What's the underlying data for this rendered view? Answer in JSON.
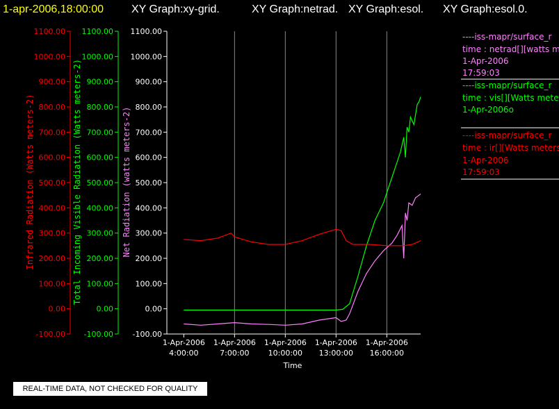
{
  "header": {
    "timestamp": "1-apr-2006,18:00:00",
    "graphs": [
      "XY Graph:xy-grid.",
      "XY Graph:netrad.",
      "XY Graph:esol.",
      "XY Graph:esol.0."
    ]
  },
  "notice": "REAL-TIME DATA, NOT CHECKED FOR QUALITY",
  "legend": [
    {
      "source": "----iss-mapr/surface_r",
      "var": "time : netrad[][watts me",
      "date": "1-Apr-2006",
      "time": "17:59:03"
    },
    {
      "source": "----iss-mapr/surface_r",
      "var": "time : vis[][Watts meter",
      "date": "1-Apr-2006o",
      "time": ""
    },
    {
      "source": "----iss-mapr/surface_r",
      "var": "time : ir[][Watts meters",
      "date": "1-Apr-2006",
      "time": "17:59:03"
    }
  ],
  "chart_data": {
    "type": "line",
    "xlabel": "Time",
    "x_ticks": [
      {
        "date": "1-Apr-2006",
        "time": "4:00:00",
        "hour": 4
      },
      {
        "date": "1-Apr-2006",
        "time": "7:00:00",
        "hour": 7
      },
      {
        "date": "1-Apr-2006",
        "time": "10:00:00",
        "hour": 10
      },
      {
        "date": "1-Apr-2006",
        "time": "13:00:00",
        "hour": 13
      },
      {
        "date": "1-Apr-2006",
        "time": "16:00:00",
        "hour": 16
      }
    ],
    "x_range_hours": [
      3.0,
      18.0
    ],
    "y_axes": [
      {
        "label": "Infrared Radiation (Watts meters-2)",
        "color": "#ff0000"
      },
      {
        "label": "Total Incoming Visible Radiation (Watts meters-2)",
        "color": "#00ff00"
      },
      {
        "label": "Net Radiation (watts meters-2)",
        "color": "#ff80ff"
      }
    ],
    "ylim": [
      -100,
      1100
    ],
    "y_ticks": [
      "-100.00",
      "0.00",
      "100.00",
      "200.00",
      "300.00",
      "400.00",
      "500.00",
      "600.00",
      "700.00",
      "800.00",
      "900.00",
      "1000.00",
      "1100.00"
    ],
    "y_tick_values": [
      -100,
      0,
      100,
      200,
      300,
      400,
      500,
      600,
      700,
      800,
      900,
      1000,
      1100
    ],
    "grid_hours": [
      7,
      10,
      13,
      16
    ],
    "series": [
      {
        "color": "#00ff00",
        "x": [
          4.0,
          5.0,
          6.0,
          7.0,
          8.0,
          9.0,
          10.0,
          11.0,
          12.0,
          13.0,
          13.4,
          13.8,
          14.3,
          14.8,
          15.3,
          15.8,
          16.2,
          16.5,
          16.8,
          17.0,
          17.1,
          17.2,
          17.3,
          17.4,
          17.6,
          17.8,
          17.9,
          18.0
        ],
        "y": [
          -5,
          -5,
          -5,
          -5,
          -5,
          -5,
          -5,
          -5,
          -5,
          -5,
          -2,
          20,
          130,
          250,
          350,
          420,
          500,
          560,
          620,
          680,
          600,
          720,
          700,
          760,
          730,
          810,
          820,
          840
        ]
      },
      {
        "color": "#ff80ff",
        "x": [
          4.0,
          5.0,
          6.0,
          7.0,
          8.0,
          9.0,
          10.0,
          11.0,
          12.0,
          13.0,
          13.3,
          13.6,
          13.8,
          14.3,
          14.8,
          15.3,
          15.8,
          16.3,
          16.6,
          16.9,
          17.0,
          17.1,
          17.2,
          17.3,
          17.5,
          17.7,
          17.9,
          18.0
        ],
        "y": [
          -60,
          -65,
          -60,
          -55,
          -60,
          -62,
          -65,
          -60,
          -45,
          -35,
          -50,
          -45,
          -20,
          70,
          140,
          190,
          230,
          260,
          290,
          330,
          200,
          380,
          350,
          420,
          410,
          440,
          450,
          455
        ]
      },
      {
        "color": "#ff0000",
        "x": [
          4.0,
          5.0,
          6.0,
          6.8,
          7.0,
          8.0,
          9.0,
          10.0,
          11.0,
          12.0,
          13.0,
          13.3,
          13.6,
          14.0,
          15.0,
          16.0,
          16.5,
          17.0,
          17.5,
          18.0
        ],
        "y": [
          275,
          270,
          280,
          300,
          285,
          265,
          255,
          255,
          270,
          295,
          315,
          310,
          270,
          255,
          255,
          250,
          250,
          250,
          255,
          270
        ]
      }
    ]
  }
}
